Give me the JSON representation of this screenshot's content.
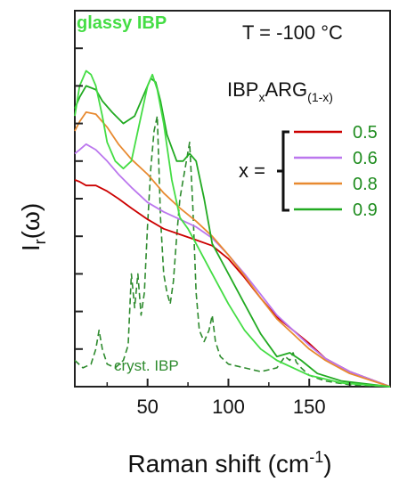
{
  "chart_data": {
    "type": "line",
    "title": "T = -100 °C",
    "xlabel_main": "Raman shift (cm",
    "xlabel_sup": "-1",
    "xlabel_end": ")",
    "ylabel_main": "I",
    "ylabel_sub": "r",
    "ylabel_end": "(ω)",
    "xlim": [
      5,
      200
    ],
    "ylim": [
      0,
      1
    ],
    "xticks": [
      50,
      100,
      150
    ],
    "xtick_labels": [
      "50",
      "100",
      "150"
    ],
    "minor_xticks": [
      25,
      75,
      125,
      175
    ],
    "yticks": [
      0.1,
      0.2,
      0.3,
      0.4,
      0.5,
      0.6,
      0.7,
      0.8,
      0.9
    ],
    "grid": false,
    "legend": {
      "title_main": "IBP",
      "title_sub1": "x",
      "title_mid": "ARG",
      "title_sub2": "(1-x)",
      "x_label": "x =",
      "placement": "right"
    },
    "annotations": {
      "glassy": "glassy IBP",
      "cryst": "cryst. IBP"
    },
    "series": [
      {
        "name": "0.5",
        "color": "#cc0000",
        "dashed": false,
        "x": [
          5,
          8,
          12,
          18,
          25,
          32,
          40,
          50,
          60,
          70,
          80,
          90,
          100,
          110,
          120,
          130,
          140,
          150,
          160,
          175,
          200
        ],
        "y": [
          0.55,
          0.545,
          0.535,
          0.535,
          0.52,
          0.5,
          0.475,
          0.445,
          0.42,
          0.405,
          0.39,
          0.375,
          0.34,
          0.29,
          0.235,
          0.185,
          0.15,
          0.115,
          0.075,
          0.04,
          0.0
        ]
      },
      {
        "name": "0.6",
        "color": "#bb77ee",
        "dashed": false,
        "x": [
          5,
          8,
          12,
          18,
          25,
          32,
          40,
          50,
          60,
          70,
          80,
          90,
          100,
          110,
          120,
          130,
          140,
          150,
          160,
          175,
          200
        ],
        "y": [
          0.62,
          0.63,
          0.645,
          0.63,
          0.6,
          0.565,
          0.53,
          0.49,
          0.465,
          0.445,
          0.425,
          0.395,
          0.35,
          0.3,
          0.245,
          0.19,
          0.15,
          0.11,
          0.075,
          0.04,
          0.0
        ]
      },
      {
        "name": "0.8",
        "color": "#e88a30",
        "dashed": false,
        "x": [
          5,
          8,
          12,
          18,
          25,
          32,
          40,
          50,
          60,
          70,
          80,
          90,
          100,
          110,
          120,
          130,
          140,
          150,
          160,
          175,
          200
        ],
        "y": [
          0.68,
          0.705,
          0.73,
          0.725,
          0.69,
          0.645,
          0.605,
          0.565,
          0.515,
          0.475,
          0.44,
          0.4,
          0.35,
          0.295,
          0.235,
          0.18,
          0.14,
          0.1,
          0.07,
          0.035,
          0.0
        ]
      },
      {
        "name": "0.9",
        "color": "#22aa22",
        "dashed": false,
        "x": [
          5,
          8,
          12,
          18,
          22,
          28,
          35,
          42,
          48,
          52,
          55,
          58,
          62,
          68,
          72,
          76,
          80,
          85,
          90,
          100,
          110,
          120,
          130,
          138,
          145,
          155,
          170,
          200
        ],
        "y": [
          0.74,
          0.77,
          0.8,
          0.79,
          0.76,
          0.73,
          0.7,
          0.72,
          0.78,
          0.82,
          0.81,
          0.76,
          0.67,
          0.6,
          0.6,
          0.62,
          0.6,
          0.5,
          0.38,
          0.3,
          0.22,
          0.14,
          0.08,
          0.09,
          0.07,
          0.035,
          0.015,
          0.0
        ]
      },
      {
        "name": "glassy IBP",
        "color": "#44dd44",
        "dashed": false,
        "x": [
          5,
          8,
          12,
          15,
          18,
          22,
          25,
          30,
          35,
          40,
          45,
          50,
          53,
          56,
          60,
          65,
          70,
          75,
          80,
          90,
          100,
          110,
          120,
          130,
          140,
          150,
          170,
          200
        ],
        "y": [
          0.72,
          0.8,
          0.84,
          0.83,
          0.8,
          0.72,
          0.65,
          0.6,
          0.58,
          0.6,
          0.7,
          0.8,
          0.83,
          0.79,
          0.7,
          0.55,
          0.45,
          0.42,
          0.38,
          0.3,
          0.22,
          0.15,
          0.1,
          0.07,
          0.05,
          0.03,
          0.01,
          0.0
        ]
      },
      {
        "name": "cryst. IBP",
        "color": "#2e8b2e",
        "dashed": true,
        "x": [
          5,
          10,
          15,
          18,
          20,
          22,
          25,
          30,
          35,
          38,
          40,
          42,
          44,
          46,
          48,
          50,
          52,
          54,
          56,
          58,
          60,
          62,
          64,
          66,
          68,
          70,
          72,
          74,
          76,
          78,
          80,
          82,
          85,
          88,
          90,
          92,
          95,
          100,
          110,
          120,
          130,
          135,
          138,
          140,
          142,
          145,
          150,
          160,
          175,
          200
        ],
        "y": [
          0.07,
          0.05,
          0.06,
          0.1,
          0.15,
          0.1,
          0.06,
          0.05,
          0.07,
          0.11,
          0.3,
          0.21,
          0.3,
          0.19,
          0.25,
          0.43,
          0.58,
          0.68,
          0.72,
          0.45,
          0.3,
          0.25,
          0.22,
          0.28,
          0.4,
          0.5,
          0.55,
          0.6,
          0.65,
          0.48,
          0.25,
          0.15,
          0.12,
          0.15,
          0.19,
          0.12,
          0.08,
          0.06,
          0.05,
          0.04,
          0.05,
          0.08,
          0.07,
          0.09,
          0.065,
          0.05,
          0.03,
          0.015,
          0.005,
          0.0
        ]
      }
    ]
  }
}
